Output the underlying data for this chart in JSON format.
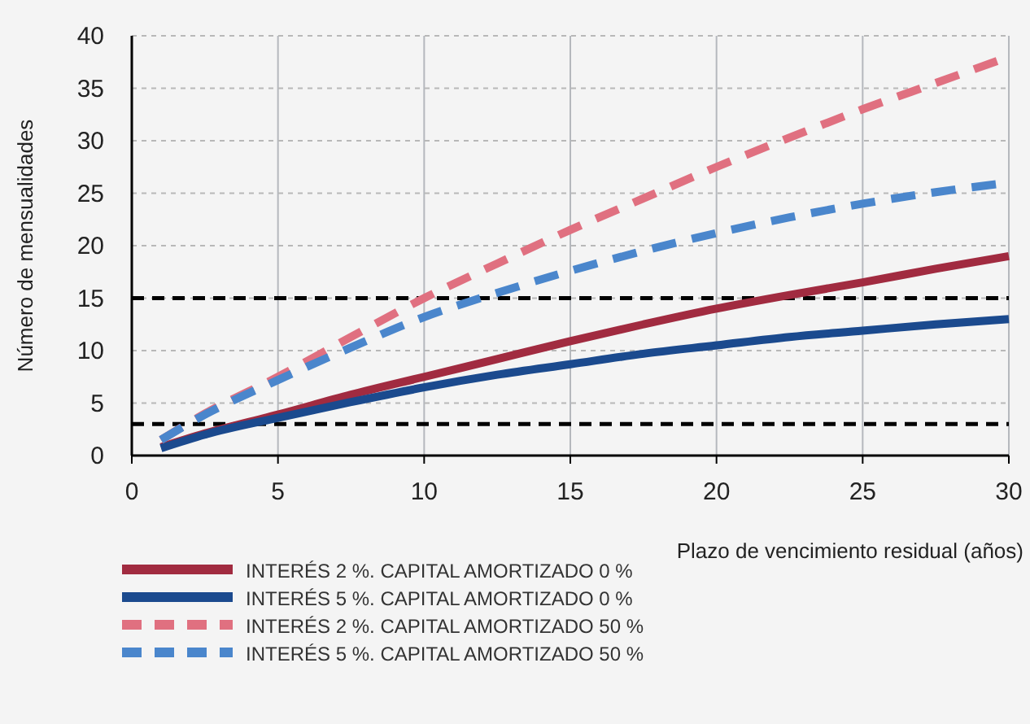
{
  "chart_data": {
    "type": "line",
    "xlabel": "Plazo de vencimiento residual (años)",
    "ylabel": "Número de mensualidades",
    "xlim": [
      0,
      30
    ],
    "xticks": [
      0,
      5,
      10,
      15,
      20,
      25,
      30
    ],
    "ylim": [
      0,
      40
    ],
    "yticks": [
      0,
      5,
      10,
      15,
      20,
      25,
      30,
      35,
      40
    ],
    "grid": true,
    "legend": "bottom left",
    "marker": "none",
    "x": [
      1,
      2.5,
      5,
      7.5,
      10,
      12.5,
      15,
      17.5,
      20,
      22.5,
      25,
      27.5,
      30
    ],
    "series": [
      {
        "name": "INTERÉS 2 %. CAPITAL AMORTIZADO 0 %",
        "color": "#a12b40",
        "line_style": "solid",
        "values": [
          0.8,
          2.1,
          3.9,
          5.8,
          7.5,
          9.2,
          10.9,
          12.5,
          14,
          15.3,
          16.5,
          17.8,
          19
        ]
      },
      {
        "name": "INTERÉS 5 %. CAPITAL AMORTIZADO 0 %",
        "color": "#1b4a8e",
        "line_style": "solid",
        "values": [
          0.7,
          2,
          3.6,
          5.1,
          6.5,
          7.7,
          8.7,
          9.7,
          10.5,
          11.3,
          11.9,
          12.5,
          13
        ]
      },
      {
        "name": "INTERÉS 2 %. CAPITAL AMORTIZADO 50 %",
        "color": "#e07080",
        "line_style": "dashed",
        "values": [
          1.5,
          4,
          7.5,
          11.3,
          15,
          18.3,
          21.5,
          24.5,
          27.5,
          30.3,
          33,
          35.5,
          38
        ]
      },
      {
        "name": "INTERÉS 5 %. CAPITAL AMORTIZADO 50 %",
        "color": "#4a86cc",
        "line_style": "dashed",
        "values": [
          1.5,
          3.9,
          7.2,
          10.3,
          13.2,
          15.5,
          17.6,
          19.5,
          21.2,
          22.7,
          24,
          25.1,
          26
        ]
      }
    ],
    "ref_lines": [
      {
        "axis": "y",
        "value": 3,
        "color": "#000000",
        "line_style": "dashed"
      },
      {
        "axis": "y",
        "value": 15,
        "color": "#000000",
        "line_style": "dashed"
      }
    ]
  }
}
